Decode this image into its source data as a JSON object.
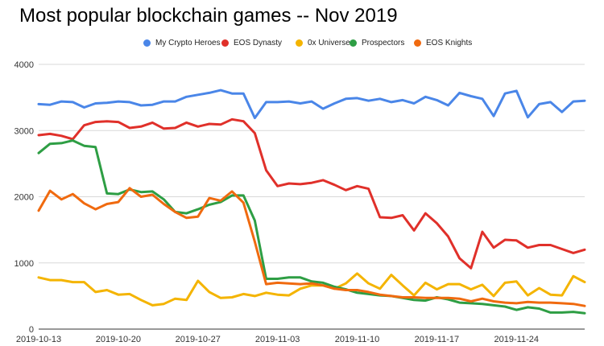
{
  "title": "Most popular blockchain games -- Nov 2019",
  "colors": {
    "grid": "#d9d9d9",
    "axis": "#333333"
  },
  "chart_data": {
    "type": "line",
    "title": "Most popular blockchain games -- Nov 2019",
    "xlabel": "",
    "ylabel": "",
    "ylim": [
      0,
      4000
    ],
    "yticks": [
      0,
      1000,
      2000,
      3000,
      4000
    ],
    "ytick_labels": [
      "0",
      "1000",
      "2000",
      "3000",
      "4000"
    ],
    "xtick_labels": [
      "2019-10-13",
      "2019-10-20",
      "2019-10-27",
      "2019-11-03",
      "2019-11-10",
      "2019-11-17",
      "2019-11-24"
    ],
    "xtick_dates": [
      "2019-10-13",
      "2019-10-20",
      "2019-10-27",
      "2019-11-03",
      "2019-11-10",
      "2019-11-17",
      "2019-11-24"
    ],
    "x_start": "2019-10-13",
    "x_end": "2019-11-30",
    "grid": true,
    "legend_position": "top",
    "x": [
      "2019-10-13",
      "2019-10-14",
      "2019-10-15",
      "2019-10-16",
      "2019-10-17",
      "2019-10-18",
      "2019-10-19",
      "2019-10-20",
      "2019-10-21",
      "2019-10-22",
      "2019-10-23",
      "2019-10-24",
      "2019-10-25",
      "2019-10-26",
      "2019-10-27",
      "2019-10-28",
      "2019-10-29",
      "2019-10-30",
      "2019-10-31",
      "2019-11-01",
      "2019-11-02",
      "2019-11-03",
      "2019-11-04",
      "2019-11-05",
      "2019-11-06",
      "2019-11-07",
      "2019-11-08",
      "2019-11-09",
      "2019-11-10",
      "2019-11-11",
      "2019-11-12",
      "2019-11-13",
      "2019-11-14",
      "2019-11-15",
      "2019-11-16",
      "2019-11-17",
      "2019-11-18",
      "2019-11-19",
      "2019-11-20",
      "2019-11-21",
      "2019-11-22",
      "2019-11-23",
      "2019-11-24",
      "2019-11-25",
      "2019-11-26",
      "2019-11-27",
      "2019-11-28",
      "2019-11-29",
      "2019-11-30"
    ],
    "series": [
      {
        "name": "My Crypto Heroes",
        "color": "#4a86e8",
        "values": [
          3400,
          3390,
          3440,
          3430,
          3350,
          3410,
          3420,
          3440,
          3430,
          3380,
          3390,
          3440,
          3440,
          3510,
          3540,
          3570,
          3610,
          3560,
          3560,
          3190,
          3430,
          3430,
          3440,
          3410,
          3440,
          3330,
          3410,
          3480,
          3490,
          3450,
          3480,
          3430,
          3460,
          3410,
          3510,
          3460,
          3380,
          3570,
          3520,
          3480,
          3220,
          3560,
          3600,
          3200,
          3400,
          3430,
          3280,
          3440,
          3450
        ]
      },
      {
        "name": "EOS Dynasty",
        "color": "#e0302a",
        "values": [
          2930,
          2950,
          2920,
          2870,
          3080,
          3130,
          3140,
          3130,
          3040,
          3060,
          3120,
          3030,
          3040,
          3120,
          3060,
          3100,
          3090,
          3170,
          3140,
          2960,
          2400,
          2160,
          2200,
          2190,
          2210,
          2250,
          2180,
          2100,
          2160,
          2120,
          1690,
          1680,
          1720,
          1490,
          1750,
          1600,
          1400,
          1070,
          920,
          1470,
          1230,
          1350,
          1340,
          1230,
          1270,
          1270,
          1210,
          1150,
          1200
        ]
      },
      {
        "name": "0x Universe",
        "color": "#f4b400",
        "values": [
          780,
          740,
          740,
          710,
          710,
          560,
          590,
          520,
          530,
          440,
          360,
          380,
          460,
          440,
          730,
          560,
          470,
          480,
          530,
          500,
          550,
          520,
          510,
          610,
          660,
          660,
          610,
          690,
          840,
          690,
          610,
          820,
          660,
          510,
          700,
          600,
          680,
          680,
          600,
          670,
          500,
          700,
          720,
          510,
          620,
          520,
          510,
          800,
          710
        ]
      },
      {
        "name": "Prospectors",
        "color": "#2e9e44",
        "values": [
          2660,
          2800,
          2810,
          2850,
          2770,
          2750,
          2050,
          2040,
          2110,
          2070,
          2080,
          1960,
          1770,
          1750,
          1810,
          1880,
          1920,
          2020,
          2020,
          1640,
          760,
          760,
          780,
          780,
          720,
          700,
          640,
          600,
          550,
          530,
          510,
          500,
          470,
          440,
          430,
          480,
          450,
          400,
          390,
          380,
          360,
          340,
          290,
          330,
          310,
          250,
          250,
          260,
          240
        ]
      },
      {
        "name": "EOS Knights",
        "color": "#f06a0f",
        "values": [
          1790,
          2090,
          1960,
          2040,
          1900,
          1810,
          1890,
          1920,
          2130,
          2000,
          2030,
          1890,
          1770,
          1680,
          1700,
          1980,
          1940,
          2080,
          1910,
          1320,
          680,
          700,
          690,
          680,
          690,
          660,
          610,
          590,
          590,
          560,
          520,
          500,
          480,
          480,
          470,
          470,
          470,
          460,
          420,
          460,
          420,
          400,
          390,
          410,
          400,
          400,
          390,
          380,
          350
        ]
      }
    ]
  }
}
